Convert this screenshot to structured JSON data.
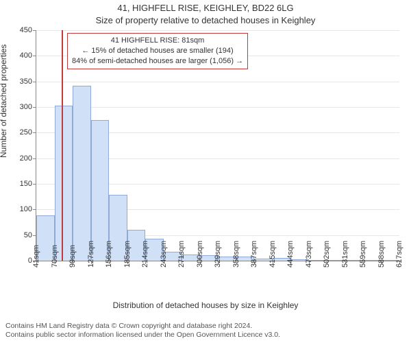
{
  "title": "41, HIGHFELL RISE, KEIGHLEY, BD22 6LG",
  "subtitle": "Size of property relative to detached houses in Keighley",
  "x_axis_title": "Distribution of detached houses by size in Keighley",
  "y_axis_title": "Number of detached properties",
  "footer_line1": "Contains HM Land Registry data © Crown copyright and database right 2024.",
  "footer_line2": "Contains public sector information licensed under the Open Government Licence v3.0.",
  "chart": {
    "type": "histogram",
    "background_color": "#ffffff",
    "grid_color": "#e6e6e6",
    "axis_color": "#888888",
    "bar_fill": "#cfe0f7",
    "bar_stroke": "#8faad6",
    "marker_color": "#c23a3a",
    "annotation_border": "#c23a3a",
    "text_color": "#333333",
    "ylim": [
      0,
      450
    ],
    "ytick_step": 50,
    "y_ticks": [
      0,
      50,
      100,
      150,
      200,
      250,
      300,
      350,
      400,
      450
    ],
    "bin_width_sqm": 29,
    "x_labels": [
      "41sqm",
      "70sqm",
      "99sqm",
      "127sqm",
      "156sqm",
      "185sqm",
      "214sqm",
      "243sqm",
      "271sqm",
      "300sqm",
      "329sqm",
      "358sqm",
      "387sqm",
      "415sqm",
      "444sqm",
      "473sqm",
      "502sqm",
      "531sqm",
      "559sqm",
      "588sqm",
      "617sqm"
    ],
    "values": [
      88,
      303,
      341,
      275,
      128,
      60,
      43,
      18,
      12,
      11,
      8,
      8,
      4,
      6,
      3,
      2,
      1,
      0,
      1,
      0
    ],
    "marker_x_sqm": 81,
    "annotation": {
      "line1": "41 HIGHFELL RISE: 81sqm",
      "line2": "← 15% of detached houses are smaller (194)",
      "line3": "84% of semi-detached houses are larger (1,056) →"
    },
    "title_fontsize": 13,
    "label_fontsize": 12,
    "tick_fontsize": 11
  }
}
